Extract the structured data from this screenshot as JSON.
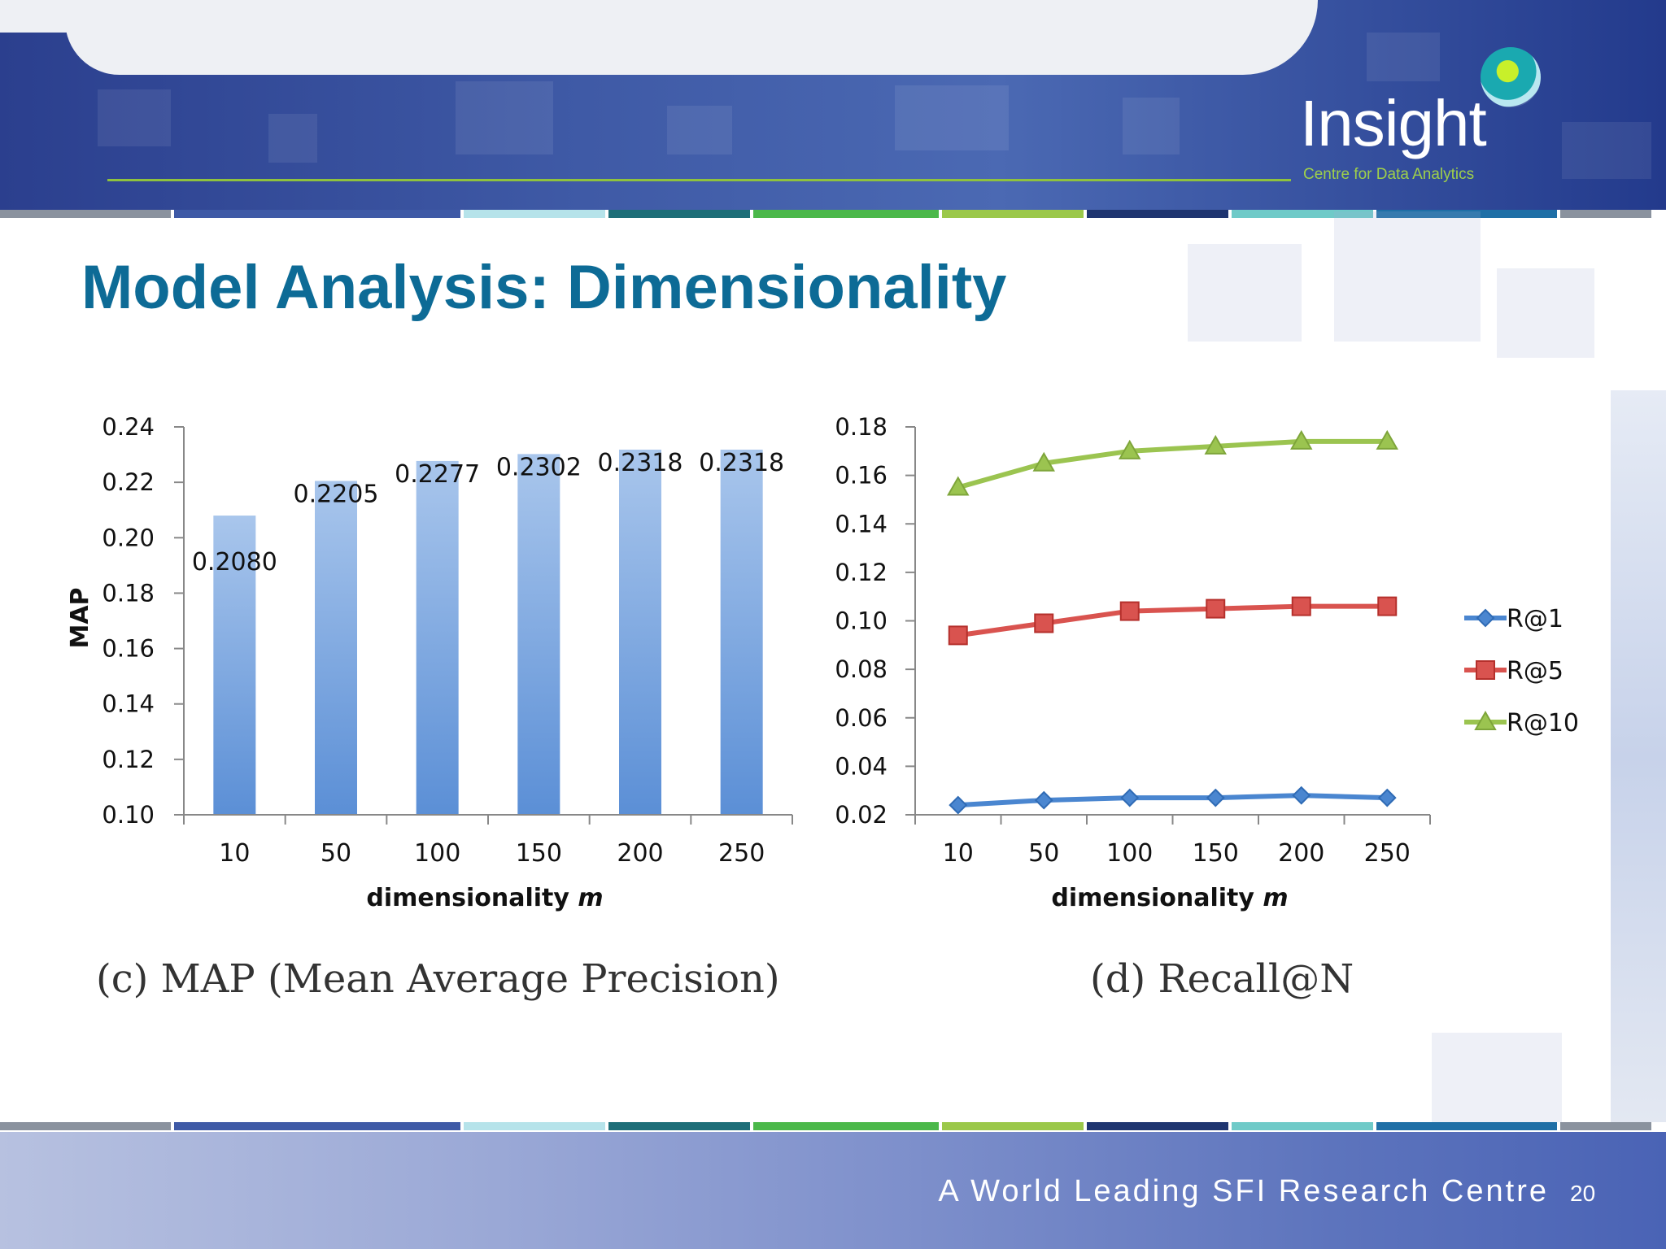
{
  "header": {
    "logo_name": "Insight",
    "logo_tagline": "Centre for Data Analytics"
  },
  "slide": {
    "title": "Model Analysis: Dimensionality"
  },
  "footer": {
    "text": "A World Leading SFI Research Centre",
    "page_number": "20"
  },
  "colors": {
    "title": "#0d6b96",
    "bar": "#5b8fd6",
    "r1": "#4a86d0",
    "r5": "#d9534f",
    "r10": "#9bc450",
    "stripes": [
      "#8a929e",
      "#3f5aa6",
      "#b6e3ea",
      "#1e6e78",
      "#4bb84a",
      "#9bc84a",
      "#1f3570",
      "#6fcac8",
      "#1f6fa6",
      "#8a929e"
    ]
  },
  "chart_data": [
    {
      "type": "bar",
      "categories": [
        "10",
        "50",
        "100",
        "150",
        "200",
        "250"
      ],
      "values": [
        0.208,
        0.2205,
        0.2277,
        0.2302,
        0.2318,
        0.2318
      ],
      "value_labels": [
        "0.2080",
        "0.2205",
        "0.2277",
        "0.2302",
        "0.2318",
        "0.2318"
      ],
      "ylim": [
        0.1,
        0.24
      ],
      "yticks": [
        "0.10",
        "0.12",
        "0.14",
        "0.16",
        "0.18",
        "0.20",
        "0.22",
        "0.24"
      ],
      "xlabel": "dimensionality ",
      "xlabel_var": "m",
      "ylabel": "MAP",
      "caption": "(c) MAP (Mean Average Precision)",
      "grid": false
    },
    {
      "type": "line",
      "categories": [
        "10",
        "50",
        "100",
        "150",
        "200",
        "250"
      ],
      "series": [
        {
          "name": "R@1",
          "marker": "diamond",
          "values": [
            0.024,
            0.026,
            0.027,
            0.027,
            0.028,
            0.027
          ]
        },
        {
          "name": "R@5",
          "marker": "square",
          "values": [
            0.094,
            0.099,
            0.104,
            0.105,
            0.106,
            0.106
          ]
        },
        {
          "name": "R@10",
          "marker": "triangle",
          "values": [
            0.155,
            0.165,
            0.17,
            0.172,
            0.174,
            0.174
          ]
        }
      ],
      "ylim": [
        0.02,
        0.18
      ],
      "yticks": [
        "0.02",
        "0.04",
        "0.06",
        "0.08",
        "0.10",
        "0.12",
        "0.14",
        "0.16",
        "0.18"
      ],
      "xlabel": "dimensionality ",
      "xlabel_var": "m",
      "legend": "right",
      "caption": "(d) Recall@N",
      "grid": false
    }
  ]
}
